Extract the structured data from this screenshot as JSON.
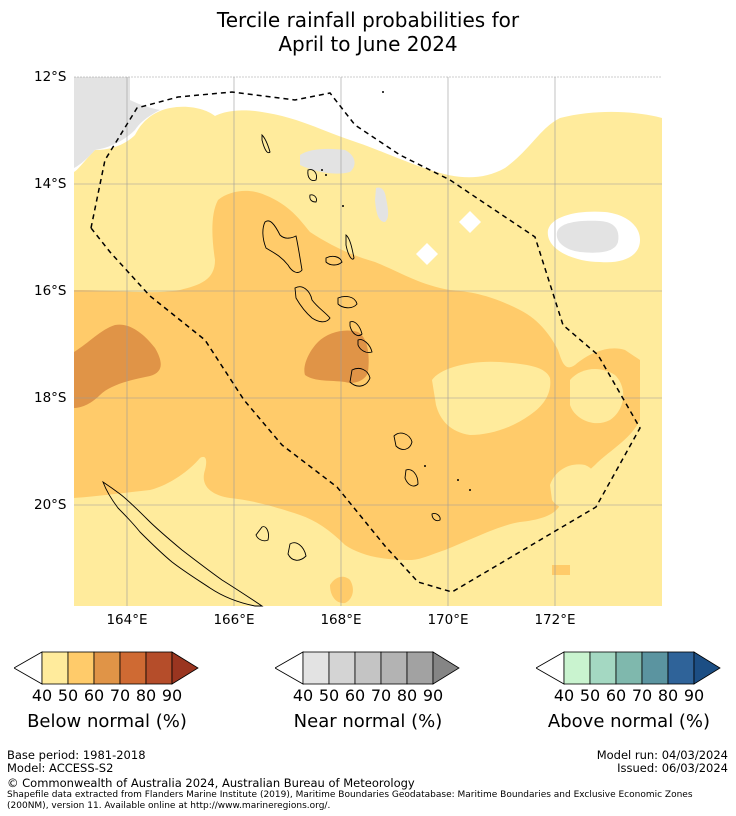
{
  "title": {
    "line1": "Tercile rainfall probabilities for",
    "line2": "April to June 2024"
  },
  "map": {
    "lat_labels": [
      "12°S",
      "14°S",
      "16°S",
      "18°S",
      "20°S"
    ],
    "lon_labels": [
      "164°E",
      "166°E",
      "168°E",
      "170°E",
      "172°E"
    ],
    "region": "Vanuatu",
    "eez_boundary": "dashed-black",
    "colors": {
      "below_40": "#ffeb9c",
      "below_50": "#ffcb6a",
      "below_60": "#e09447",
      "below_70": "#cf6a33",
      "below_80": "#b54d2a",
      "below_90": "#9a3520",
      "near_40": "#e3e3e3",
      "near_50": "#d4d4d4",
      "near_60": "#c4c4c4",
      "near_70": "#b3b3b3",
      "near_80": "#a2a2a2",
      "near_90": "#858585",
      "above_40": "#c9f3cf",
      "above_50": "#a4d8c2",
      "above_60": "#7fb8ad",
      "above_70": "#5b94a0",
      "above_80": "#2f6399",
      "above_90": "#1c4e84"
    }
  },
  "colorbars": [
    {
      "label": "Below normal (%)",
      "ticks": [
        "40",
        "50",
        "60",
        "70",
        "80",
        "90"
      ]
    },
    {
      "label": "Near normal (%)",
      "ticks": [
        "40",
        "50",
        "60",
        "70",
        "80",
        "90"
      ]
    },
    {
      "label": "Above normal (%)",
      "ticks": [
        "40",
        "50",
        "60",
        "70",
        "80",
        "90"
      ]
    }
  ],
  "footer": {
    "base_period": "Base period: 1981-2018",
    "model": "Model: ACCESS-S2",
    "model_run": "Model run: 04/03/2024",
    "issued": "Issued: 06/03/2024",
    "copyright": "© Commonwealth of Australia 2024, Australian Bureau of Meteorology",
    "shapefile_line1": "Shapefile data extracted from Flanders Marine Institute (2019), Maritime Boundaries Geodatabase: Maritime Boundaries and Exclusive Economic Zones",
    "shapefile_line2": "(200NM), version 11. Available online at http://www.marineregions.org/."
  }
}
